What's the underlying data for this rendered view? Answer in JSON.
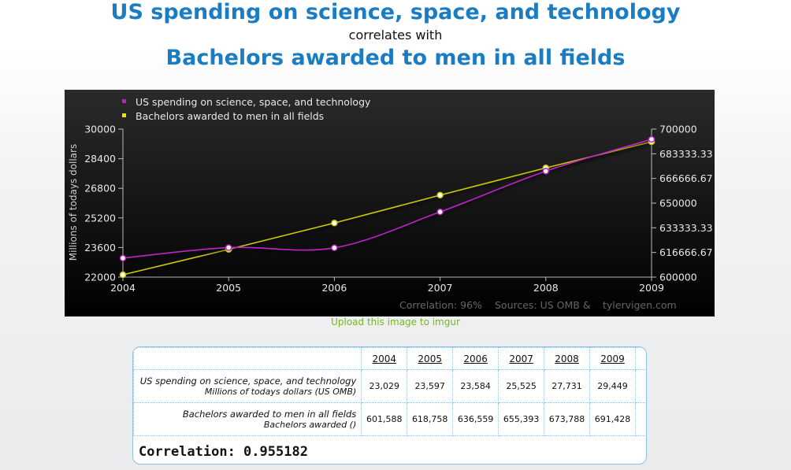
{
  "header": {
    "title_line1": "US spending on science, space, and technology",
    "title_line2": "correlates with",
    "title_line3": "Bachelors awarded to men in all fields"
  },
  "upload_link": "Upload this image to imgur",
  "colors": {
    "title_blue": "#1a7dc3",
    "series1": "#c020c8",
    "series2": "#c8c800",
    "chart_bg": "#000000",
    "link_green": "#7ab51d"
  },
  "chart_data": {
    "type": "line",
    "x": [
      2004,
      2005,
      2006,
      2007,
      2008,
      2009
    ],
    "xlim": [
      2004,
      2009
    ],
    "ylabel": "Millions of todays dollars",
    "y_left_lim": [
      22000,
      30000
    ],
    "y_left_ticks": [
      "22000",
      "23600",
      "25200",
      "26800",
      "28400",
      "30000"
    ],
    "y_right_lim": [
      600000,
      700000
    ],
    "y_right_ticks": [
      "600000",
      "616666.67",
      "633333.33",
      "650000",
      "666666.67",
      "683333.33",
      "700000"
    ],
    "x_ticks": [
      "2004",
      "2005",
      "2006",
      "2007",
      "2008",
      "2009"
    ],
    "legend_position": "top-left",
    "series": [
      {
        "name": "US spending on science, space, and technology",
        "axis": "left",
        "values": [
          23029,
          23597,
          23584,
          25525,
          27731,
          29449
        ]
      },
      {
        "name": "Bachelors awarded to men in all fields",
        "axis": "right",
        "values": [
          601588,
          618758,
          636559,
          655393,
          673788,
          691428
        ]
      }
    ],
    "footer": {
      "correlation": "Correlation: 96%",
      "sources": "Sources: US OMB &",
      "site": "tylervigen.com"
    }
  },
  "table": {
    "years": [
      "2004",
      "2005",
      "2006",
      "2007",
      "2008",
      "2009"
    ],
    "rows": [
      {
        "label": "US spending on science, space, and technology",
        "unit": "Millions of todays dollars (US OMB)",
        "values": [
          "23,029",
          "23,597",
          "23,584",
          "25,525",
          "27,731",
          "29,449"
        ]
      },
      {
        "label": "Bachelors awarded to men in all fields",
        "unit": "Bachelors awarded ()",
        "values": [
          "601,588",
          "618,758",
          "636,559",
          "655,393",
          "673,788",
          "691,428"
        ]
      }
    ],
    "correlation": "Correlation: 0.955182"
  }
}
